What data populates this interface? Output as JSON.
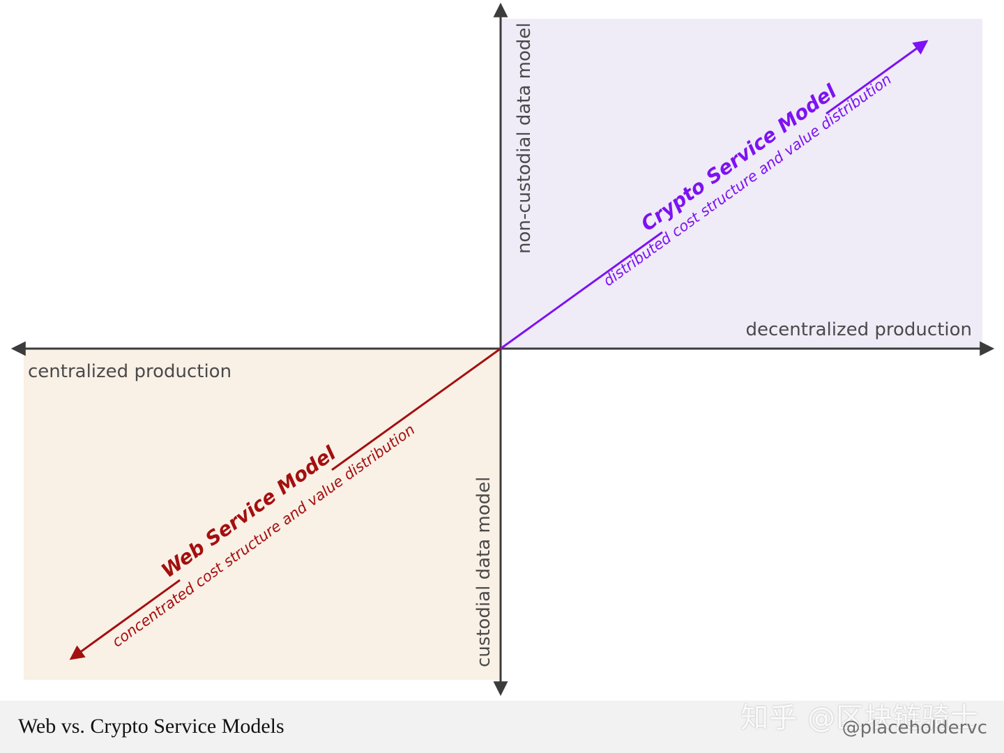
{
  "colors": {
    "crypto_quadrant": "#efebf7",
    "web_quadrant": "#f9f0e6",
    "axis": "#3c3c3c",
    "crypto_accent": "#7d12f2",
    "web_accent": "#a30f0f",
    "footer_bg": "#f2f2f2"
  },
  "axes": {
    "y_positive": "non-custodial data model",
    "y_negative": "custodial data model",
    "x_positive": "decentralized production",
    "x_negative": "centralized production"
  },
  "crypto_model": {
    "title": "Crypto Service Model",
    "subtitle": "distributed cost structure and value distribution"
  },
  "web_model": {
    "title": "Web Service Model",
    "subtitle": "concentrated cost structure and value distribution"
  },
  "footer": {
    "title": "Web vs. Crypto Service Models",
    "watermark": "知乎 @区块链骑士",
    "credit": "@placeholdervc"
  }
}
